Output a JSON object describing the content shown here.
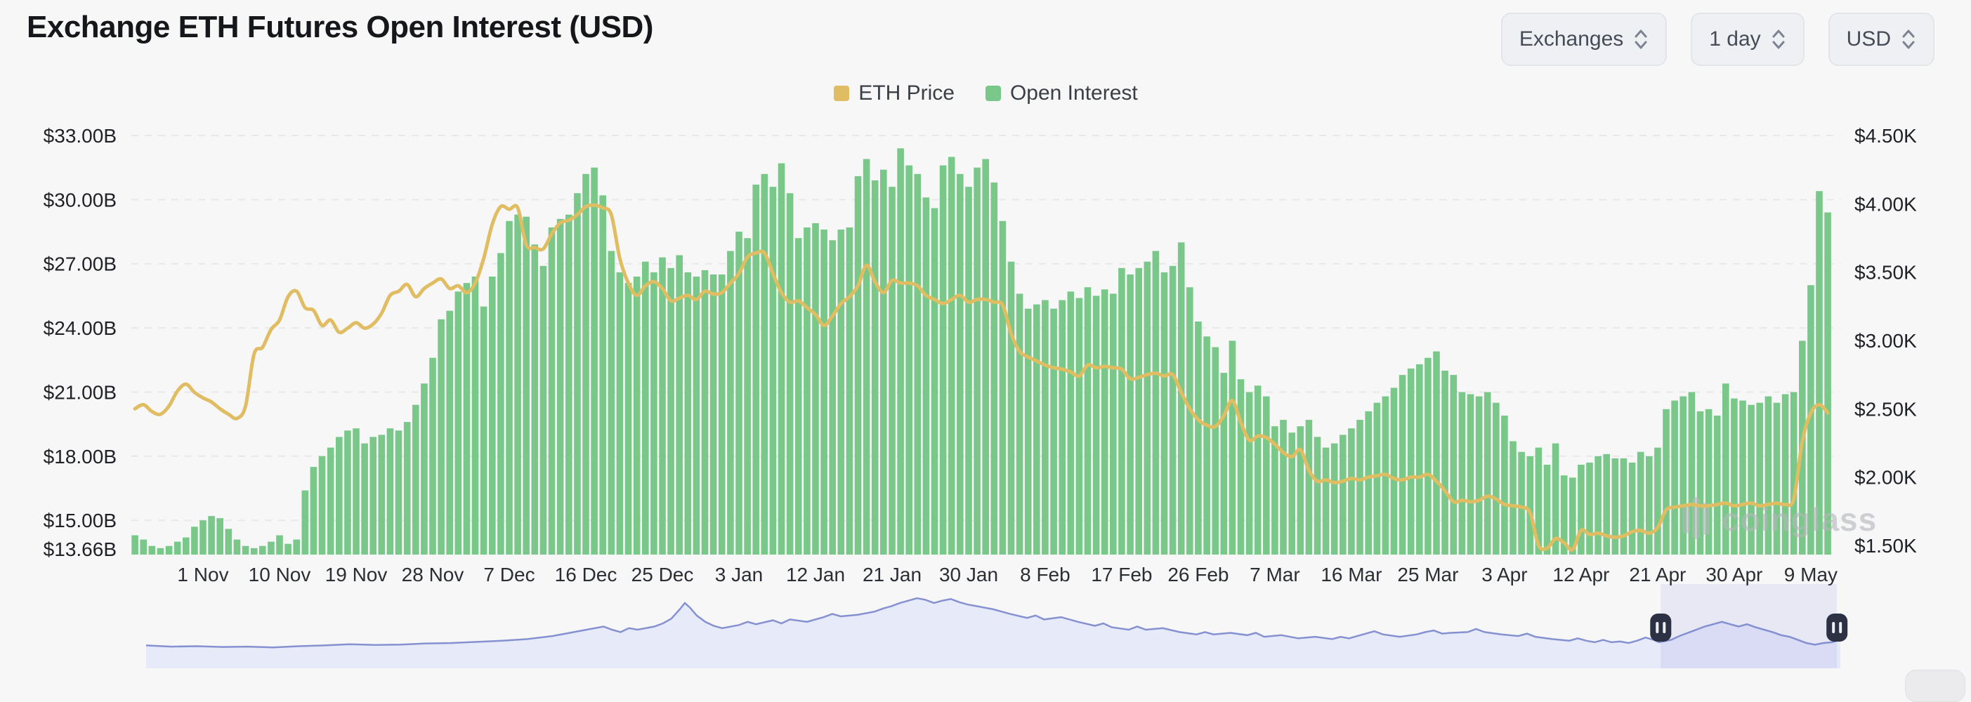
{
  "header": {
    "title": "Exchange ETH Futures Open Interest (USD)",
    "controls": [
      {
        "label": "Exchanges"
      },
      {
        "label": "1 day"
      },
      {
        "label": "USD"
      }
    ]
  },
  "legend": {
    "items": [
      {
        "label": "ETH Price",
        "color": "#e0bd62"
      },
      {
        "label": "Open Interest",
        "color": "#79c88a"
      }
    ]
  },
  "watermark": {
    "text": "coinglass",
    "color": "#b4b6b9"
  },
  "chart_data": {
    "type": "bar",
    "title": "Exchange ETH Futures Open Interest (USD)",
    "grid": "horizontal dashed",
    "legend_position": "top center",
    "x_axis": {
      "tick_labels": [
        "1 Nov",
        "10 Nov",
        "19 Nov",
        "28 Nov",
        "7 Dec",
        "16 Dec",
        "25 Dec",
        "3 Jan",
        "12 Jan",
        "21 Jan",
        "30 Jan",
        "8 Feb",
        "17 Feb",
        "26 Feb",
        "7 Mar",
        "16 Mar",
        "25 Mar",
        "3 Apr",
        "12 Apr",
        "21 Apr",
        "30 Apr",
        "9 May"
      ],
      "first_tick_index": 8,
      "tick_step": 9
    },
    "left_axis": {
      "range": [
        13.66,
        33
      ],
      "ticks": [
        {
          "value": 33,
          "label": "$33.00B"
        },
        {
          "value": 30,
          "label": "$30.00B"
        },
        {
          "value": 27,
          "label": "$27.00B"
        },
        {
          "value": 24,
          "label": "$24.00B"
        },
        {
          "value": 21,
          "label": "$21.00B"
        },
        {
          "value": 18,
          "label": "$18.00B"
        },
        {
          "value": 15,
          "label": "$15.00B"
        },
        {
          "value": 13.66,
          "label": "$13.66B",
          "no_gridline": true
        }
      ]
    },
    "right_axis": {
      "range": [
        1.5,
        4.5
      ],
      "ticks": [
        {
          "value": 4.5,
          "label": "$4.50K"
        },
        {
          "value": 4.0,
          "label": "$4.00K"
        },
        {
          "value": 3.5,
          "label": "$3.50K"
        },
        {
          "value": 3.0,
          "label": "$3.00K"
        },
        {
          "value": 2.5,
          "label": "$2.50K"
        },
        {
          "value": 2.0,
          "label": "$2.00K"
        },
        {
          "value": 1.5,
          "label": "$1.50K"
        }
      ]
    },
    "series": [
      {
        "name": "Open Interest",
        "type": "bar",
        "axis": "left",
        "unit": "USD billions",
        "color": "#79c88a",
        "values": [
          14.3,
          14.1,
          13.8,
          13.7,
          13.8,
          14.0,
          14.2,
          14.7,
          15.0,
          15.2,
          15.1,
          14.6,
          14.1,
          13.8,
          13.7,
          13.8,
          14.0,
          14.3,
          13.9,
          14.1,
          16.4,
          17.5,
          18.0,
          18.4,
          18.9,
          19.2,
          19.3,
          18.6,
          18.9,
          19.0,
          19.3,
          19.2,
          19.6,
          20.4,
          21.4,
          22.6,
          24.4,
          24.8,
          25.7,
          26.1,
          26.4,
          25.0,
          26.4,
          27.5,
          29.0,
          29.3,
          29.2,
          27.9,
          26.9,
          28.7,
          29.1,
          29.3,
          30.3,
          31.2,
          31.5,
          30.2,
          27.6,
          26.6,
          26.1,
          26.4,
          27.1,
          26.6,
          27.3,
          26.8,
          27.4,
          26.6,
          26.4,
          26.7,
          26.5,
          26.5,
          27.6,
          28.5,
          28.2,
          30.7,
          31.2,
          30.6,
          31.7,
          30.3,
          28.2,
          28.7,
          28.9,
          28.6,
          28.1,
          28.6,
          28.7,
          31.1,
          31.9,
          30.9,
          31.4,
          30.6,
          32.4,
          31.6,
          31.2,
          30.1,
          29.6,
          31.6,
          32.0,
          31.2,
          30.6,
          31.5,
          31.9,
          30.8,
          29.0,
          27.1,
          25.6,
          24.9,
          25.1,
          25.3,
          24.9,
          25.3,
          25.7,
          25.4,
          25.9,
          25.5,
          25.8,
          25.6,
          26.8,
          26.5,
          26.8,
          27.1,
          27.6,
          26.6,
          26.9,
          28.0,
          25.9,
          24.3,
          23.6,
          23.1,
          21.9,
          23.4,
          21.6,
          21.0,
          21.3,
          20.8,
          19.4,
          19.7,
          19.1,
          19.4,
          19.7,
          18.9,
          18.4,
          18.6,
          19.0,
          19.3,
          19.7,
          20.1,
          20.5,
          20.8,
          21.2,
          21.8,
          22.1,
          22.3,
          22.6,
          22.9,
          22.0,
          21.8,
          21.0,
          20.9,
          20.8,
          21.0,
          20.5,
          19.9,
          18.7,
          18.2,
          18.0,
          18.4,
          17.6,
          18.6,
          17.1,
          17.0,
          17.6,
          17.7,
          18.0,
          18.1,
          17.9,
          17.9,
          17.7,
          18.2,
          18.0,
          18.4,
          20.2,
          20.6,
          20.8,
          21.0,
          20.1,
          20.2,
          19.9,
          21.4,
          20.7,
          20.6,
          20.4,
          20.5,
          20.8,
          20.5,
          20.9,
          21.0,
          23.4,
          26.0,
          30.4,
          29.4
        ]
      },
      {
        "name": "ETH Price",
        "type": "line",
        "axis": "right",
        "unit": "USD thousands",
        "color": "#e0bd62",
        "values": [
          2.5,
          2.53,
          2.48,
          2.46,
          2.52,
          2.63,
          2.68,
          2.62,
          2.58,
          2.55,
          2.5,
          2.46,
          2.43,
          2.52,
          2.9,
          2.95,
          3.08,
          3.15,
          3.32,
          3.36,
          3.24,
          3.22,
          3.11,
          3.15,
          3.06,
          3.09,
          3.13,
          3.09,
          3.12,
          3.2,
          3.33,
          3.36,
          3.41,
          3.32,
          3.38,
          3.42,
          3.45,
          3.38,
          3.4,
          3.35,
          3.42,
          3.6,
          3.85,
          3.98,
          3.96,
          3.97,
          3.7,
          3.68,
          3.67,
          3.78,
          3.86,
          3.88,
          3.92,
          3.98,
          3.99,
          3.97,
          3.92,
          3.6,
          3.42,
          3.33,
          3.4,
          3.43,
          3.38,
          3.29,
          3.31,
          3.33,
          3.3,
          3.36,
          3.34,
          3.35,
          3.42,
          3.49,
          3.61,
          3.64,
          3.64,
          3.49,
          3.35,
          3.28,
          3.29,
          3.24,
          3.19,
          3.11,
          3.18,
          3.27,
          3.32,
          3.4,
          3.55,
          3.43,
          3.35,
          3.44,
          3.42,
          3.42,
          3.4,
          3.33,
          3.3,
          3.27,
          3.3,
          3.33,
          3.28,
          3.3,
          3.3,
          3.28,
          3.26,
          3.05,
          2.92,
          2.88,
          2.85,
          2.82,
          2.8,
          2.79,
          2.77,
          2.74,
          2.82,
          2.8,
          2.81,
          2.8,
          2.79,
          2.72,
          2.73,
          2.75,
          2.76,
          2.74,
          2.75,
          2.62,
          2.5,
          2.42,
          2.38,
          2.37,
          2.45,
          2.56,
          2.4,
          2.27,
          2.3,
          2.29,
          2.24,
          2.18,
          2.15,
          2.2,
          2.05,
          1.97,
          1.98,
          1.96,
          1.97,
          1.99,
          1.98,
          2.0,
          2.01,
          2.02,
          1.99,
          1.98,
          2.0,
          2.0,
          2.02,
          1.97,
          1.9,
          1.82,
          1.83,
          1.82,
          1.83,
          1.86,
          1.84,
          1.8,
          1.79,
          1.78,
          1.74,
          1.5,
          1.48,
          1.55,
          1.52,
          1.47,
          1.61,
          1.58,
          1.59,
          1.57,
          1.56,
          1.57,
          1.6,
          1.61,
          1.59,
          1.63,
          1.76,
          1.78,
          1.79,
          1.8,
          1.79,
          1.79,
          1.8,
          1.81,
          1.79,
          1.8,
          1.81,
          1.79,
          1.8,
          1.81,
          1.8,
          1.84,
          2.26,
          2.47,
          2.53,
          2.47
        ]
      }
    ]
  },
  "navigator": {
    "line_color": "#8691d1",
    "fill_color": "#e7eaf8",
    "selection_color": "rgba(121,134,220,0.13)",
    "handle_color": "#2c3144",
    "selection": [
      0.894,
      0.998
    ],
    "shape": [
      [
        0,
        0.3
      ],
      [
        0.015,
        0.285
      ],
      [
        0.03,
        0.29
      ],
      [
        0.045,
        0.28
      ],
      [
        0.06,
        0.285
      ],
      [
        0.075,
        0.275
      ],
      [
        0.09,
        0.29
      ],
      [
        0.105,
        0.3
      ],
      [
        0.12,
        0.315
      ],
      [
        0.135,
        0.305
      ],
      [
        0.15,
        0.31
      ],
      [
        0.165,
        0.325
      ],
      [
        0.18,
        0.33
      ],
      [
        0.195,
        0.345
      ],
      [
        0.21,
        0.36
      ],
      [
        0.225,
        0.38
      ],
      [
        0.24,
        0.42
      ],
      [
        0.25,
        0.46
      ],
      [
        0.26,
        0.5
      ],
      [
        0.27,
        0.54
      ],
      [
        0.275,
        0.5
      ],
      [
        0.28,
        0.47
      ],
      [
        0.285,
        0.52
      ],
      [
        0.29,
        0.5
      ],
      [
        0.3,
        0.54
      ],
      [
        0.305,
        0.58
      ],
      [
        0.31,
        0.64
      ],
      [
        0.315,
        0.76
      ],
      [
        0.318,
        0.84
      ],
      [
        0.321,
        0.78
      ],
      [
        0.325,
        0.68
      ],
      [
        0.33,
        0.6
      ],
      [
        0.335,
        0.55
      ],
      [
        0.34,
        0.52
      ],
      [
        0.35,
        0.56
      ],
      [
        0.355,
        0.6
      ],
      [
        0.36,
        0.57
      ],
      [
        0.37,
        0.62
      ],
      [
        0.375,
        0.58
      ],
      [
        0.38,
        0.63
      ],
      [
        0.39,
        0.6
      ],
      [
        0.4,
        0.66
      ],
      [
        0.405,
        0.7
      ],
      [
        0.41,
        0.67
      ],
      [
        0.42,
        0.69
      ],
      [
        0.43,
        0.73
      ],
      [
        0.435,
        0.77
      ],
      [
        0.44,
        0.8
      ],
      [
        0.445,
        0.84
      ],
      [
        0.45,
        0.87
      ],
      [
        0.455,
        0.9
      ],
      [
        0.46,
        0.88
      ],
      [
        0.465,
        0.84
      ],
      [
        0.47,
        0.87
      ],
      [
        0.475,
        0.89
      ],
      [
        0.48,
        0.85
      ],
      [
        0.485,
        0.82
      ],
      [
        0.49,
        0.8
      ],
      [
        0.5,
        0.76
      ],
      [
        0.51,
        0.7
      ],
      [
        0.52,
        0.65
      ],
      [
        0.525,
        0.68
      ],
      [
        0.53,
        0.63
      ],
      [
        0.54,
        0.66
      ],
      [
        0.55,
        0.6
      ],
      [
        0.56,
        0.55
      ],
      [
        0.565,
        0.58
      ],
      [
        0.57,
        0.53
      ],
      [
        0.58,
        0.5
      ],
      [
        0.585,
        0.54
      ],
      [
        0.59,
        0.5
      ],
      [
        0.6,
        0.52
      ],
      [
        0.61,
        0.47
      ],
      [
        0.62,
        0.44
      ],
      [
        0.625,
        0.47
      ],
      [
        0.63,
        0.44
      ],
      [
        0.64,
        0.46
      ],
      [
        0.65,
        0.43
      ],
      [
        0.655,
        0.46
      ],
      [
        0.66,
        0.41
      ],
      [
        0.67,
        0.43
      ],
      [
        0.68,
        0.39
      ],
      [
        0.69,
        0.41
      ],
      [
        0.7,
        0.38
      ],
      [
        0.705,
        0.41
      ],
      [
        0.71,
        0.39
      ],
      [
        0.72,
        0.45
      ],
      [
        0.725,
        0.48
      ],
      [
        0.73,
        0.44
      ],
      [
        0.74,
        0.41
      ],
      [
        0.75,
        0.44
      ],
      [
        0.755,
        0.47
      ],
      [
        0.76,
        0.49
      ],
      [
        0.765,
        0.45
      ],
      [
        0.77,
        0.46
      ],
      [
        0.78,
        0.47
      ],
      [
        0.785,
        0.51
      ],
      [
        0.79,
        0.47
      ],
      [
        0.8,
        0.44
      ],
      [
        0.81,
        0.42
      ],
      [
        0.815,
        0.45
      ],
      [
        0.82,
        0.41
      ],
      [
        0.83,
        0.38
      ],
      [
        0.84,
        0.36
      ],
      [
        0.845,
        0.39
      ],
      [
        0.85,
        0.36
      ],
      [
        0.855,
        0.34
      ],
      [
        0.86,
        0.37
      ],
      [
        0.865,
        0.34
      ],
      [
        0.87,
        0.35
      ],
      [
        0.875,
        0.33
      ],
      [
        0.88,
        0.36
      ],
      [
        0.885,
        0.4
      ],
      [
        0.89,
        0.37
      ],
      [
        0.893,
        0.34
      ],
      [
        0.9,
        0.37
      ],
      [
        0.905,
        0.42
      ],
      [
        0.91,
        0.46
      ],
      [
        0.915,
        0.5
      ],
      [
        0.92,
        0.54
      ],
      [
        0.925,
        0.57
      ],
      [
        0.93,
        0.6
      ],
      [
        0.935,
        0.57
      ],
      [
        0.94,
        0.54
      ],
      [
        0.945,
        0.57
      ],
      [
        0.95,
        0.53
      ],
      [
        0.955,
        0.5
      ],
      [
        0.96,
        0.47
      ],
      [
        0.965,
        0.43
      ],
      [
        0.97,
        0.41
      ],
      [
        0.975,
        0.37
      ],
      [
        0.98,
        0.33
      ],
      [
        0.985,
        0.31
      ],
      [
        0.99,
        0.33
      ],
      [
        0.995,
        0.34
      ],
      [
        1,
        0.37
      ]
    ]
  }
}
